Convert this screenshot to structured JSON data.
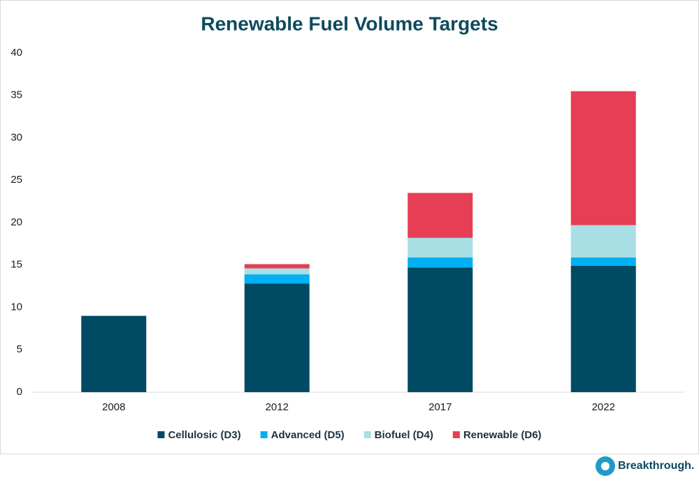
{
  "chart_data": {
    "type": "stacked_bar",
    "title": "Renewable Fuel Volume Targets",
    "categories": [
      "2008",
      "2012",
      "2017",
      "2022"
    ],
    "series": [
      {
        "name": "Cellulosic (D3)",
        "color": "#004b63",
        "values": [
          9,
          12.8,
          14.7,
          14.9
        ]
      },
      {
        "name": "Advanced (D5)",
        "color": "#00b0f0",
        "values": [
          0,
          1.1,
          1.2,
          1.0
        ]
      },
      {
        "name": "Biofuel (D4)",
        "color": "#a7dfe5",
        "values": [
          0,
          0.7,
          2.3,
          3.8
        ]
      },
      {
        "name": "Renewable (D6)",
        "color": "#e63e54",
        "values": [
          0,
          0.5,
          5.3,
          15.8
        ]
      }
    ],
    "ylim": [
      0,
      40
    ],
    "yticks": [
      0,
      5,
      10,
      15,
      20,
      25,
      30,
      35,
      40
    ],
    "grid": false,
    "legend": "bottom"
  },
  "branding": "Breakthrough."
}
